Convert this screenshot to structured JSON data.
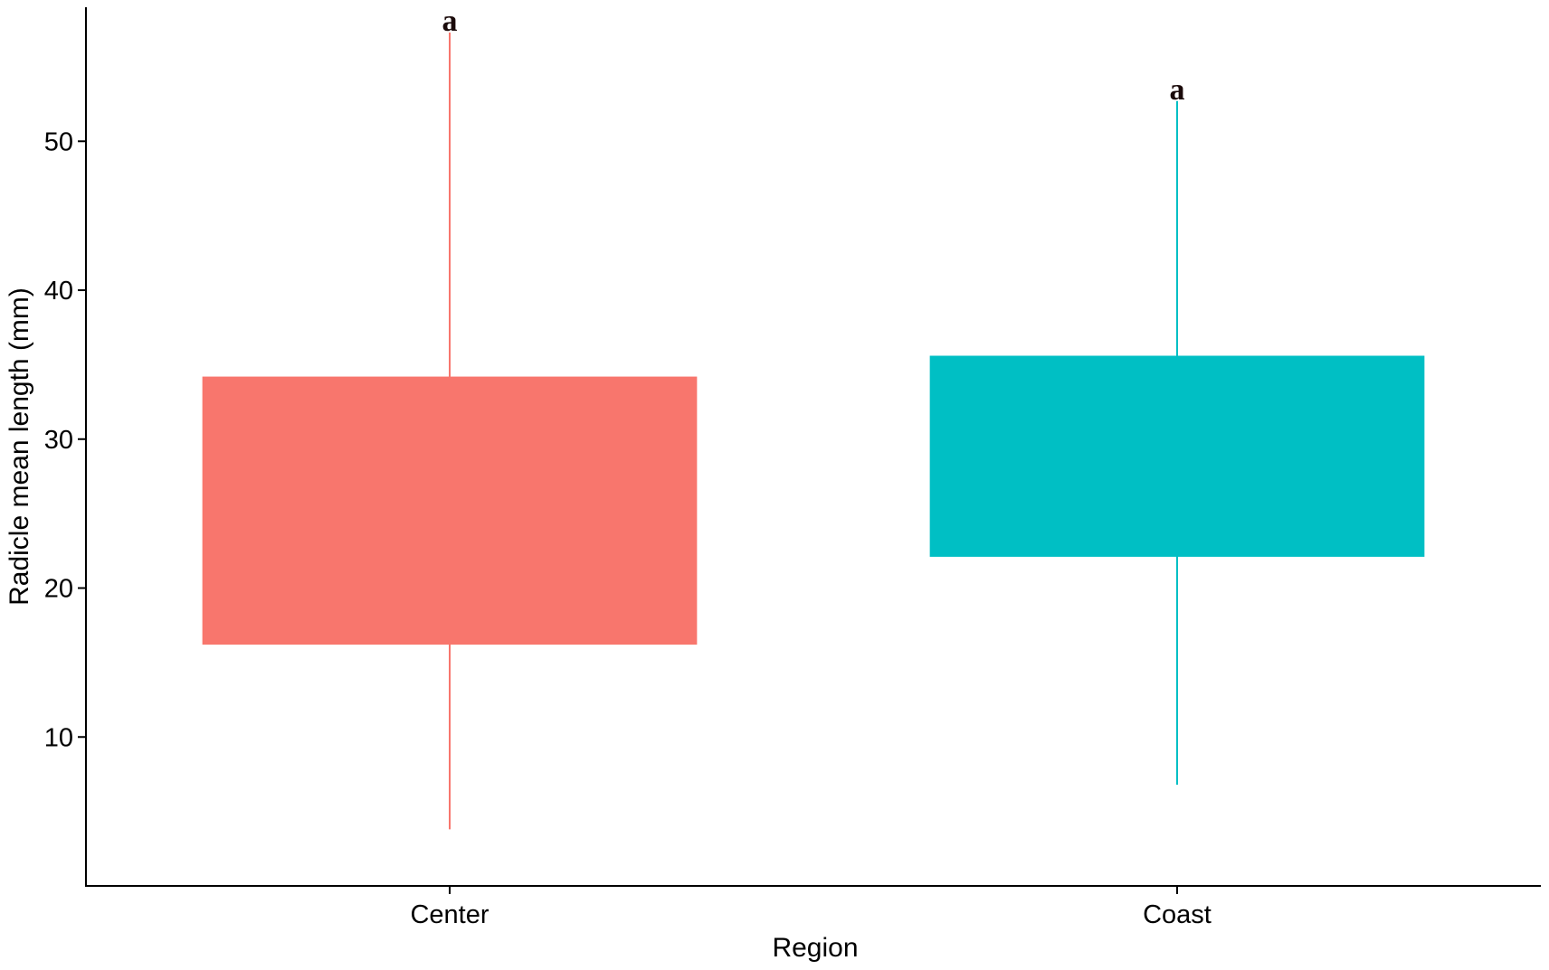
{
  "chart_data": {
    "type": "box",
    "xlabel": "Region",
    "ylabel": "Radicle mean length (mm)",
    "categories": [
      "Center",
      "Coast"
    ],
    "yticks": [
      10,
      20,
      30,
      40,
      50
    ],
    "ylim": [
      0,
      59
    ],
    "grid": false,
    "legend": "none",
    "boxes": [
      {
        "category": "Center",
        "whisker_low": 3.8,
        "q1": 16.2,
        "q3": 34.2,
        "whisker_high": 57.3,
        "color": "#F8766D",
        "group_label": "a"
      },
      {
        "category": "Coast",
        "whisker_low": 6.8,
        "q1": 22.1,
        "q3": 35.6,
        "whisker_high": 52.7,
        "color": "#00BFC4",
        "group_label": "a"
      }
    ]
  }
}
